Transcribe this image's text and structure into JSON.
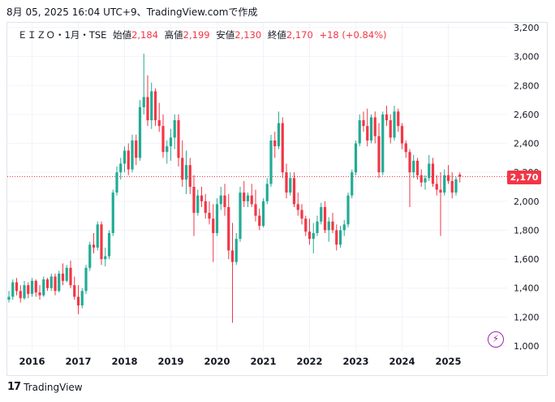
{
  "caption": "8月 05, 2025 16:04 UTC+9、TradingView.comで作成",
  "legend": {
    "symbol": "ＥＩＺＯ・1月・TSE",
    "open_label": "始値",
    "open": "2,184",
    "high_label": "高値",
    "high": "2,199",
    "low_label": "安値",
    "low": "2,130",
    "close_label": "終値",
    "close": "2,170",
    "change": "+18 (+0.84%)"
  },
  "last_price_label": "2,170",
  "footer_brand": "TradingView",
  "footer_logo": "17",
  "flash_icon": "⚡",
  "colors": {
    "up": "#22ab94",
    "down": "#f23645",
    "grid": "#f0f3fa",
    "axis_text": "#131722"
  },
  "chart_data": {
    "type": "candlestick",
    "interval": "1 month",
    "ylim": [
      1000,
      3200
    ],
    "x_ticks": [
      "2016",
      "2017",
      "2018",
      "2019",
      "2020",
      "2021",
      "2022",
      "2023",
      "2024",
      "2025"
    ],
    "y_ticks": [
      "1,000",
      "1,200",
      "1,400",
      "1,600",
      "1,800",
      "2,000",
      "2,200",
      "2,400",
      "2,600",
      "2,800",
      "3,000",
      "3,200"
    ],
    "last_close": 2170,
    "candles": [
      [
        1320,
        1380,
        1300,
        1340
      ],
      [
        1340,
        1460,
        1320,
        1440
      ],
      [
        1440,
        1470,
        1350,
        1380
      ],
      [
        1380,
        1420,
        1300,
        1330
      ],
      [
        1330,
        1450,
        1320,
        1420
      ],
      [
        1420,
        1440,
        1330,
        1360
      ],
      [
        1360,
        1470,
        1340,
        1450
      ],
      [
        1450,
        1460,
        1340,
        1370
      ],
      [
        1370,
        1420,
        1320,
        1350
      ],
      [
        1350,
        1480,
        1340,
        1460
      ],
      [
        1460,
        1470,
        1380,
        1400
      ],
      [
        1400,
        1500,
        1380,
        1480
      ],
      [
        1480,
        1500,
        1350,
        1380
      ],
      [
        1380,
        1520,
        1370,
        1500
      ],
      [
        1500,
        1570,
        1420,
        1450
      ],
      [
        1450,
        1560,
        1440,
        1540
      ],
      [
        1540,
        1590,
        1400,
        1420
      ],
      [
        1420,
        1480,
        1320,
        1340
      ],
      [
        1340,
        1420,
        1220,
        1280
      ],
      [
        1280,
        1400,
        1260,
        1380
      ],
      [
        1380,
        1560,
        1360,
        1540
      ],
      [
        1540,
        1720,
        1520,
        1700
      ],
      [
        1700,
        1780,
        1640,
        1680
      ],
      [
        1680,
        1860,
        1660,
        1840
      ],
      [
        1840,
        1860,
        1560,
        1600
      ],
      [
        1600,
        1680,
        1550,
        1620
      ],
      [
        1620,
        1800,
        1600,
        1780
      ],
      [
        1780,
        2080,
        1760,
        2060
      ],
      [
        2060,
        2240,
        2040,
        2200
      ],
      [
        2200,
        2300,
        2150,
        2260
      ],
      [
        2260,
        2380,
        2200,
        2350
      ],
      [
        2350,
        2400,
        2180,
        2220
      ],
      [
        2220,
        2460,
        2200,
        2420
      ],
      [
        2420,
        2460,
        2250,
        2300
      ],
      [
        2300,
        2700,
        2280,
        2650
      ],
      [
        2650,
        3020,
        2600,
        2720
      ],
      [
        2720,
        2870,
        2520,
        2560
      ],
      [
        2560,
        2820,
        2500,
        2760
      ],
      [
        2760,
        2780,
        2520,
        2560
      ],
      [
        2560,
        2680,
        2480,
        2520
      ],
      [
        2520,
        2600,
        2300,
        2340
      ],
      [
        2340,
        2420,
        2260,
        2380
      ],
      [
        2380,
        2500,
        2280,
        2440
      ],
      [
        2440,
        2600,
        2360,
        2560
      ],
      [
        2560,
        2600,
        2240,
        2300
      ],
      [
        2300,
        2420,
        2100,
        2150
      ],
      [
        2150,
        2350,
        2050,
        2250
      ],
      [
        2250,
        2300,
        2050,
        2100
      ],
      [
        2100,
        2180,
        1760,
        1920
      ],
      [
        1920,
        2080,
        1900,
        2040
      ],
      [
        2040,
        2100,
        1960,
        2000
      ],
      [
        2000,
        2050,
        1880,
        1920
      ],
      [
        1920,
        2000,
        1840,
        1880
      ],
      [
        1880,
        1980,
        1580,
        1780
      ],
      [
        1780,
        2020,
        1760,
        1980
      ],
      [
        1980,
        2100,
        1940,
        2040
      ],
      [
        2040,
        2120,
        1900,
        1960
      ],
      [
        1960,
        2050,
        1600,
        1660
      ],
      [
        1660,
        1850,
        1160,
        1580
      ],
      [
        1580,
        1780,
        1560,
        1740
      ],
      [
        1740,
        2100,
        1720,
        2060
      ],
      [
        2060,
        2140,
        1960,
        2000
      ],
      [
        2000,
        2060,
        1960,
        2040
      ],
      [
        2040,
        2120,
        1960,
        1980
      ],
      [
        1980,
        2080,
        1860,
        1900
      ],
      [
        1900,
        1950,
        1800,
        1830
      ],
      [
        1830,
        2020,
        1820,
        2000
      ],
      [
        2000,
        2160,
        1980,
        2120
      ],
      [
        2120,
        2460,
        2100,
        2420
      ],
      [
        2420,
        2480,
        2300,
        2380
      ],
      [
        2380,
        2620,
        2360,
        2540
      ],
      [
        2540,
        2580,
        2160,
        2200
      ],
      [
        2200,
        2260,
        2020,
        2060
      ],
      [
        2060,
        2200,
        2040,
        2160
      ],
      [
        2160,
        2200,
        1960,
        1980
      ],
      [
        1980,
        2060,
        1900,
        1940
      ],
      [
        1940,
        1980,
        1840,
        1880
      ],
      [
        1880,
        1900,
        1760,
        1790
      ],
      [
        1790,
        1880,
        1700,
        1740
      ],
      [
        1740,
        1850,
        1640,
        1780
      ],
      [
        1780,
        1900,
        1760,
        1860
      ],
      [
        1860,
        1990,
        1840,
        1960
      ],
      [
        1960,
        2000,
        1780,
        1800
      ],
      [
        1800,
        1890,
        1720,
        1860
      ],
      [
        1860,
        1920,
        1780,
        1800
      ],
      [
        1800,
        1840,
        1660,
        1700
      ],
      [
        1700,
        1830,
        1680,
        1800
      ],
      [
        1800,
        1870,
        1760,
        1840
      ],
      [
        1840,
        2060,
        1820,
        2040
      ],
      [
        2040,
        2220,
        2020,
        2200
      ],
      [
        2200,
        2420,
        2180,
        2400
      ],
      [
        2400,
        2600,
        2380,
        2560
      ],
      [
        2560,
        2620,
        2480,
        2520
      ],
      [
        2520,
        2640,
        2380,
        2420
      ],
      [
        2420,
        2600,
        2400,
        2580
      ],
      [
        2580,
        2620,
        2400,
        2450
      ],
      [
        2450,
        2540,
        2160,
        2200
      ],
      [
        2200,
        2620,
        2180,
        2600
      ],
      [
        2600,
        2660,
        2520,
        2560
      ],
      [
        2560,
        2600,
        2400,
        2440
      ],
      [
        2440,
        2660,
        2420,
        2620
      ],
      [
        2620,
        2640,
        2480,
        2520
      ],
      [
        2520,
        2540,
        2360,
        2400
      ],
      [
        2400,
        2420,
        2300,
        2340
      ],
      [
        2340,
        2360,
        1960,
        2200
      ],
      [
        2200,
        2320,
        2160,
        2280
      ],
      [
        2280,
        2300,
        2150,
        2180
      ],
      [
        2180,
        2220,
        2100,
        2130
      ],
      [
        2130,
        2180,
        2080,
        2160
      ],
      [
        2160,
        2320,
        2140,
        2260
      ],
      [
        2260,
        2300,
        2100,
        2120
      ],
      [
        2120,
        2180,
        2040,
        2080
      ],
      [
        2080,
        2200,
        1760,
        2060
      ],
      [
        2060,
        2220,
        2040,
        2180
      ],
      [
        2180,
        2250,
        2120,
        2140
      ],
      [
        2140,
        2200,
        2020,
        2060
      ],
      [
        2060,
        2170,
        2040,
        2152
      ],
      [
        2184,
        2199,
        2130,
        2170
      ]
    ]
  }
}
